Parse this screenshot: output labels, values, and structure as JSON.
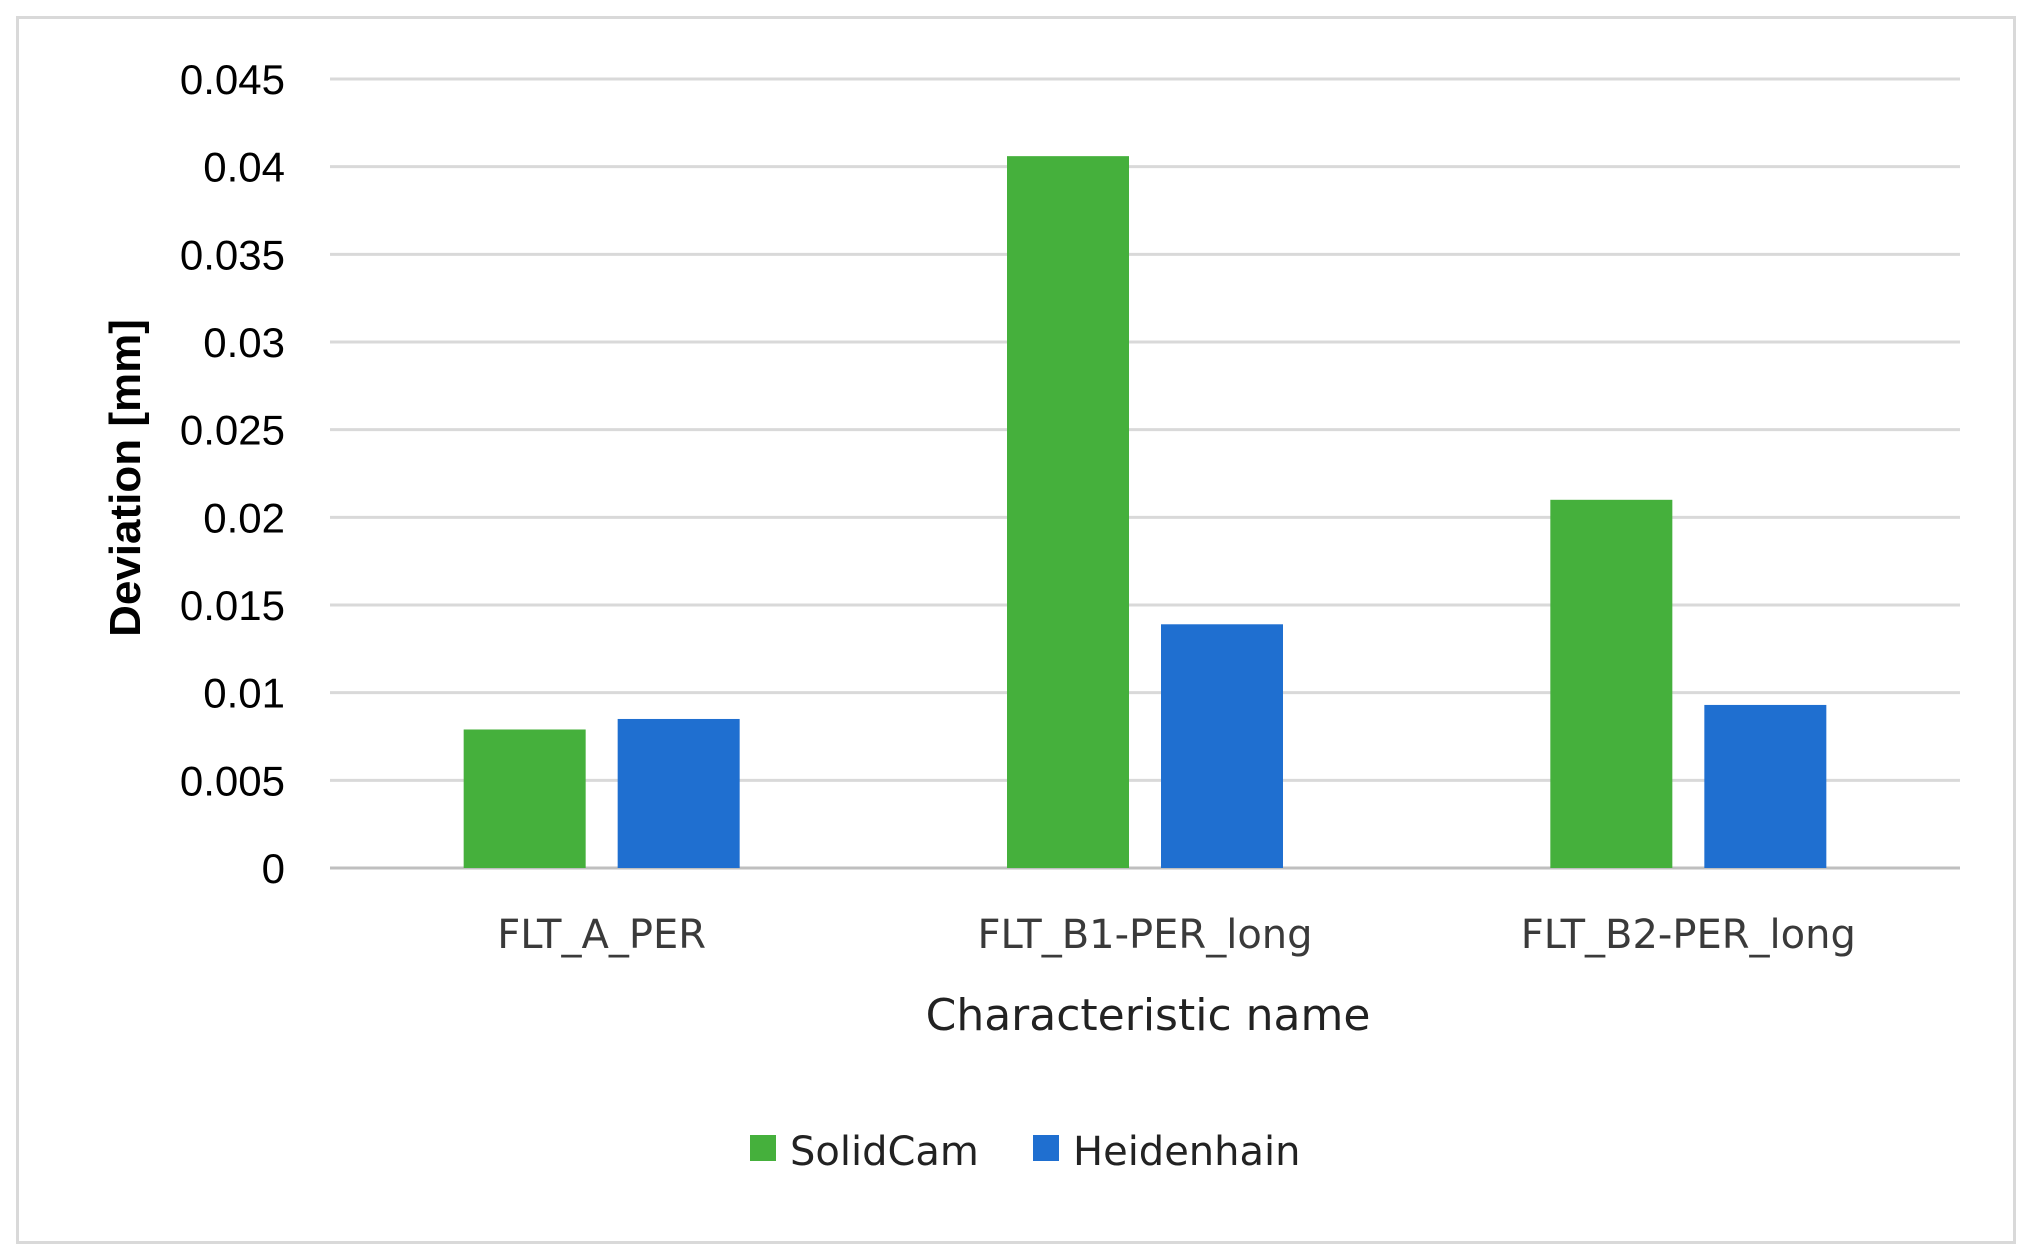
{
  "chart_data": {
    "type": "bar",
    "categories": [
      "FLT_A_PER",
      "FLT_B1-PER_long",
      "FLT_B2-PER_long"
    ],
    "series": [
      {
        "name": "SolidCam",
        "values": [
          0.0079,
          0.0406,
          0.021
        ],
        "color": "#45b03c"
      },
      {
        "name": "Heidenhain",
        "values": [
          0.0085,
          0.0139,
          0.0093
        ],
        "color": "#1f6fd0"
      }
    ],
    "xlabel": "Characteristic name",
    "ylabel": "Deviation [mm]",
    "ylim": [
      0,
      0.045
    ],
    "yticks": [
      "0",
      "0.005",
      "0.01",
      "0.015",
      "0.02",
      "0.025",
      "0.03",
      "0.035",
      "0.04",
      "0.045"
    ],
    "grid": true,
    "legend": "bottom"
  }
}
